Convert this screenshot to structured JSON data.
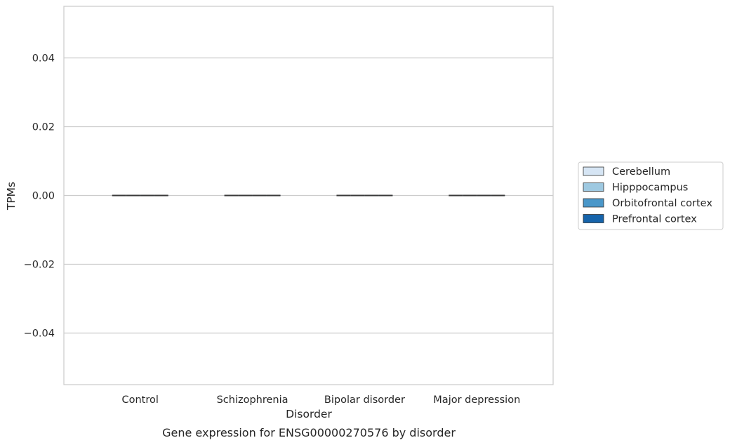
{
  "chart_data": {
    "type": "box",
    "xlabel": "Disorder",
    "ylabel": "TPMs",
    "caption": "Gene expression for ENSG00000270576 by disorder",
    "categories": [
      "Control",
      "Schizophrenia",
      "Bipolar disorder",
      "Major depression"
    ],
    "ylim": [
      -0.055,
      0.055
    ],
    "yticks": [
      -0.04,
      -0.02,
      0.0,
      0.02,
      0.04
    ],
    "ytick_labels": [
      "−0.04",
      "−0.02",
      "0.00",
      "0.02",
      "0.04"
    ],
    "grid": "horizontal",
    "legend_position": "right",
    "series": [
      {
        "name": "Cerebellum",
        "color": "#d6e5f4",
        "values": [
          0,
          0,
          0,
          0
        ]
      },
      {
        "name": "Hipppocampus",
        "color": "#9ec9e1",
        "values": [
          0,
          0,
          0,
          0
        ]
      },
      {
        "name": "Orbitofrontal cortex",
        "color": "#4a97c9",
        "values": [
          0,
          0,
          0,
          0
        ]
      },
      {
        "name": "Prefrontal cortex",
        "color": "#1664ab",
        "values": [
          0,
          0,
          0,
          0
        ]
      }
    ],
    "colors": {
      "grid": "#cccccc",
      "frame": "#cccccc",
      "median": "#3a3a3a"
    }
  }
}
